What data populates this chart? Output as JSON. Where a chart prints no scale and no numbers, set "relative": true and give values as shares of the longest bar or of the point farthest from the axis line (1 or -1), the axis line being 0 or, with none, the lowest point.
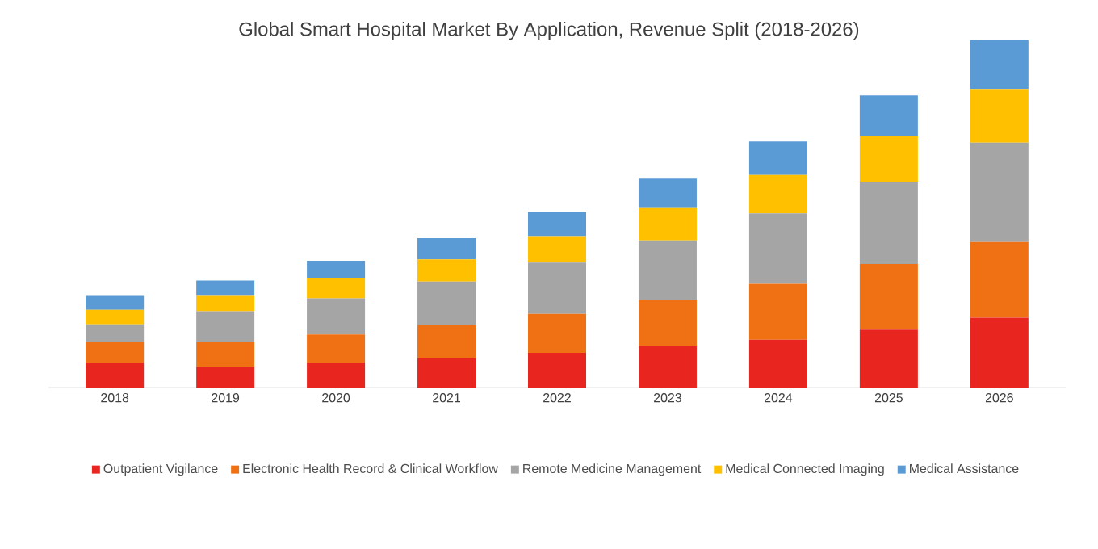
{
  "chart_data": {
    "type": "bar",
    "title": "Global Smart Hospital Market By Application, Revenue Split (2018-2026)",
    "stacked": true,
    "relative": true,
    "legend": "bottom",
    "categories": [
      "2018",
      "2019",
      "2020",
      "2021",
      "2022",
      "2023",
      "2024",
      "2025",
      "2026"
    ],
    "series": [
      {
        "name": "Outpatient Vigilance",
        "color": "#e8251f",
        "values": [
          0.072,
          0.059,
          0.072,
          0.085,
          0.1,
          0.119,
          0.138,
          0.167,
          0.201
        ]
      },
      {
        "name": "Electronic Health Record & Clinical Workflow",
        "color": "#f07114",
        "values": [
          0.059,
          0.072,
          0.081,
          0.095,
          0.112,
          0.133,
          0.161,
          0.189,
          0.218
        ]
      },
      {
        "name": "Remote Medicine Management",
        "color": "#a5a5a5",
        "values": [
          0.051,
          0.089,
          0.104,
          0.125,
          0.148,
          0.172,
          0.203,
          0.237,
          0.286
        ]
      },
      {
        "name": "Medical Connected Imaging",
        "color": "#ffc000",
        "values": [
          0.042,
          0.044,
          0.059,
          0.064,
          0.076,
          0.093,
          0.11,
          0.131,
          0.155
        ]
      },
      {
        "name": "Medical Assistance",
        "color": "#5b9bd5",
        "values": [
          0.04,
          0.044,
          0.049,
          0.061,
          0.07,
          0.085,
          0.097,
          0.117,
          0.14
        ]
      }
    ]
  }
}
